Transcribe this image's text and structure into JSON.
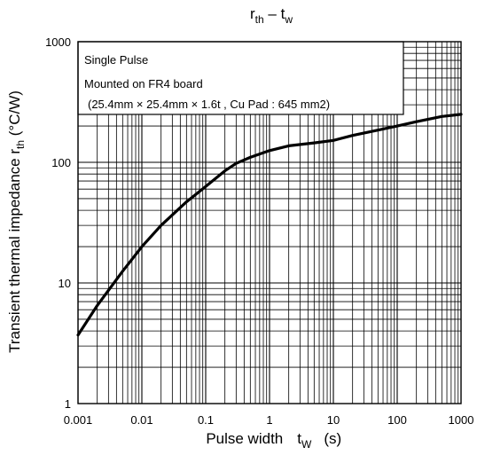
{
  "chart_data": {
    "type": "line",
    "title": "rth – tw",
    "title_main": "r",
    "title_sub": "th",
    "title_sep": " – t",
    "title_sub2": "w",
    "xlabel_main": "Pulse width",
    "xlabel_t": "t",
    "xlabel_sub": "W",
    "xlabel_unit": "(s)",
    "ylabel_main": "Transient thermal impedance r",
    "ylabel_sub": "th",
    "ylabel_unit": " (°C/W)",
    "x_scale": "log",
    "y_scale": "log",
    "xlim": [
      0.001,
      1000
    ],
    "ylim": [
      1,
      1000
    ],
    "grid": true,
    "x_ticks": [
      {
        "v": 0.001,
        "label": "0.001"
      },
      {
        "v": 0.01,
        "label": "0.01"
      },
      {
        "v": 0.1,
        "label": "0.1"
      },
      {
        "v": 1,
        "label": "1"
      },
      {
        "v": 10,
        "label": "10"
      },
      {
        "v": 100,
        "label": "100"
      },
      {
        "v": 1000,
        "label": "1000"
      }
    ],
    "y_ticks": [
      {
        "v": 1,
        "label": "1"
      },
      {
        "v": 10,
        "label": "10"
      },
      {
        "v": 100,
        "label": "100"
      },
      {
        "v": 1000,
        "label": "1000"
      }
    ],
    "annotation": [
      "Single Pulse",
      "Mounted on FR4 board",
      "(25.4mm × 25.4mm × 1.6t , Cu Pad : 645 mm2)"
    ],
    "series": [
      {
        "x": [
          0.001,
          0.002,
          0.005,
          0.01,
          0.02,
          0.05,
          0.1,
          0.2,
          0.3,
          0.5,
          1,
          2,
          5,
          10,
          20,
          50,
          100,
          200,
          500,
          1000
        ],
        "y": [
          3.7,
          6.5,
          12.5,
          20,
          30,
          47,
          63,
          85,
          98,
          110,
          125,
          137,
          145,
          152,
          167,
          185,
          200,
          217,
          240,
          250
        ]
      }
    ]
  }
}
